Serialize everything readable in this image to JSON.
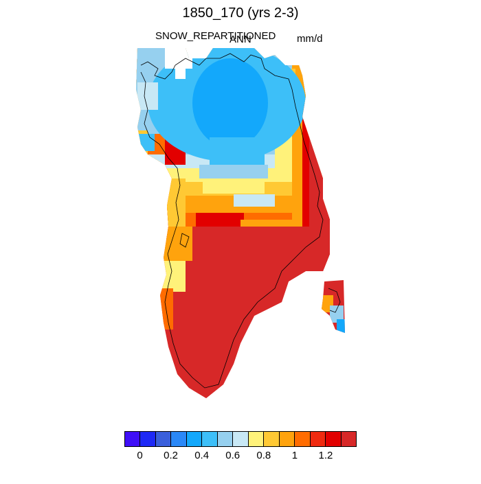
{
  "title": "1850_170 (yrs 2-3)",
  "subtitle_left": "SNOW_REPARTITIONED",
  "subtitle_center": "ANN",
  "subtitle_right": "mm/d",
  "colorbar": {
    "colors": [
      "#3f0ff7",
      "#1e29f6",
      "#3a5fdc",
      "#2a88f7",
      "#13a8fb",
      "#3dbff8",
      "#96d0ef",
      "#c8e8f5",
      "#fff27a",
      "#ffc934",
      "#ffa30d",
      "#ff6c00",
      "#ef2a10",
      "#e20000",
      "#d72828"
    ],
    "tick_labels": [
      "0",
      "0.2",
      "0.4",
      "0.6",
      "0.8",
      "1",
      "1.2"
    ]
  },
  "map": {
    "region": "Greenland",
    "field": "SNOW_REPARTITIONED",
    "units": "mm/d",
    "outline_color": "#000000"
  }
}
